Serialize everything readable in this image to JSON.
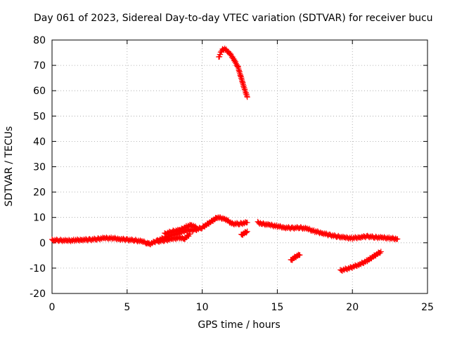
{
  "chart_data": {
    "type": "scatter",
    "title": "Day 061 of 2023, Sidereal Day-to-day VTEC variation (SDTVAR) for receiver bucu",
    "xlabel": "GPS time / hours",
    "ylabel": "SDTVAR / TECUs",
    "xlim": [
      0,
      25
    ],
    "ylim": [
      -20,
      80
    ],
    "xticks": [
      0,
      5,
      10,
      15,
      20,
      25
    ],
    "yticks": [
      -20,
      -10,
      0,
      10,
      20,
      30,
      40,
      50,
      60,
      70,
      80
    ],
    "grid": true,
    "marker": "+",
    "color": "#ff0000",
    "series": [
      {
        "name": "main-trace",
        "points": [
          [
            0.0,
            1.0
          ],
          [
            0.5,
            1.0
          ],
          [
            1.0,
            0.8
          ],
          [
            1.5,
            1.0
          ],
          [
            2.0,
            1.2
          ],
          [
            2.5,
            1.2
          ],
          [
            3.0,
            1.5
          ],
          [
            3.5,
            1.8
          ],
          [
            4.0,
            1.8
          ],
          [
            4.5,
            1.5
          ],
          [
            5.0,
            1.2
          ],
          [
            5.5,
            1.0
          ],
          [
            6.0,
            0.5
          ],
          [
            6.3,
            0.0
          ],
          [
            6.5,
            -0.5
          ],
          [
            7.0,
            0.8
          ],
          [
            7.5,
            2.0
          ],
          [
            8.0,
            3.0
          ],
          [
            8.5,
            4.0
          ],
          [
            9.0,
            5.0
          ],
          [
            9.5,
            5.0
          ],
          [
            10.0,
            6.0
          ],
          [
            10.5,
            8.0
          ],
          [
            11.0,
            10.0
          ],
          [
            11.5,
            9.5
          ],
          [
            12.0,
            7.5
          ],
          [
            12.5,
            7.5
          ],
          [
            13.0,
            8.0
          ]
        ]
      },
      {
        "name": "upper-spread",
        "points": [
          [
            7.5,
            3.5
          ],
          [
            8.0,
            4.5
          ],
          [
            8.5,
            5.0
          ],
          [
            9.0,
            6.5
          ],
          [
            9.3,
            7.0
          ],
          [
            9.6,
            6.0
          ]
        ]
      },
      {
        "name": "lower-spread",
        "points": [
          [
            7.0,
            0.5
          ],
          [
            7.5,
            1.0
          ],
          [
            8.0,
            1.5
          ],
          [
            8.5,
            2.0
          ],
          [
            8.8,
            1.5
          ],
          [
            9.2,
            3.5
          ]
        ]
      },
      {
        "name": "high-arc",
        "points": [
          [
            11.1,
            73.0
          ],
          [
            11.3,
            76.0
          ],
          [
            11.5,
            76.5
          ],
          [
            11.8,
            75.0
          ],
          [
            12.1,
            72.5
          ],
          [
            12.4,
            69.0
          ],
          [
            12.6,
            65.0
          ],
          [
            12.8,
            61.0
          ],
          [
            13.0,
            57.5
          ]
        ]
      },
      {
        "name": "small-segment",
        "points": [
          [
            12.6,
            3.0
          ],
          [
            12.8,
            3.8
          ],
          [
            13.0,
            4.5
          ]
        ]
      },
      {
        "name": "evening-trace",
        "points": [
          [
            13.7,
            8.0
          ],
          [
            14.0,
            7.5
          ],
          [
            14.5,
            7.0
          ],
          [
            15.0,
            6.5
          ],
          [
            15.5,
            6.0
          ],
          [
            16.0,
            5.8
          ],
          [
            16.5,
            6.0
          ],
          [
            17.0,
            5.5
          ],
          [
            17.5,
            4.5
          ],
          [
            18.0,
            3.8
          ],
          [
            18.5,
            3.0
          ],
          [
            19.0,
            2.5
          ],
          [
            19.5,
            2.0
          ],
          [
            20.0,
            1.8
          ],
          [
            20.5,
            2.2
          ],
          [
            21.0,
            2.5
          ],
          [
            21.5,
            2.2
          ],
          [
            22.0,
            2.0
          ],
          [
            22.5,
            1.8
          ],
          [
            23.0,
            1.5
          ]
        ]
      },
      {
        "name": "negative-segment-1",
        "points": [
          [
            15.9,
            -7.0
          ],
          [
            16.1,
            -6.0
          ],
          [
            16.3,
            -5.2
          ],
          [
            16.5,
            -4.8
          ]
        ]
      },
      {
        "name": "negative-segment-2",
        "points": [
          [
            19.2,
            -11.0
          ],
          [
            19.8,
            -10.0
          ],
          [
            20.5,
            -8.5
          ],
          [
            21.0,
            -7.0
          ],
          [
            21.5,
            -5.0
          ],
          [
            21.9,
            -3.5
          ]
        ]
      }
    ]
  }
}
